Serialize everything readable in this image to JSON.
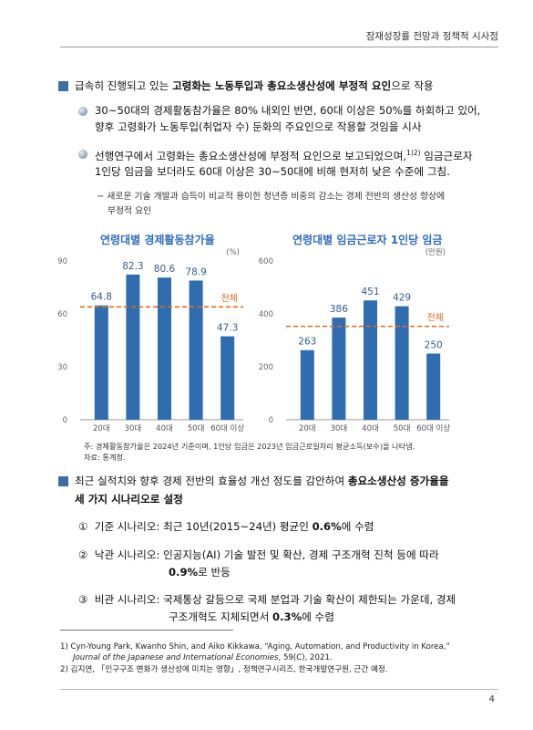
{
  "header": {
    "title": "잠재성장률 전망과 정책적 시사점"
  },
  "section1": {
    "pre": "급속히 진행되고 있는 ",
    "bold": "고령화는 노동투입과 총요소생산성에 부정적 요인",
    "post": "으로 작용"
  },
  "bullet1": {
    "line1": "30~50대의 경제활동참가율은 80% 내외인 반면, 60대 이상은 50%를 하회하고 있어,",
    "line2": "향후 고령화가 노동투입(취업자 수) 둔화의 주요인으로 작용할 것임을 시사"
  },
  "bullet2": {
    "line1": "선행연구에서 고령화는 총요소생산성에 부정적 요인으로 보고되었으며,",
    "sup": "1)2)",
    "line1b": " 임금근로자",
    "line2": "1인당 임금을 보더라도 60대 이상은 30~50대에 비해 현저히 낮은 수준에 그침."
  },
  "dash1": {
    "line1": "− 새로운 기술 개발과 습득이 비교적 용이한 청년층 비중의 감소는 경제 전반의 생산성 향상에",
    "line2": "부정적 요인"
  },
  "charts": {
    "overall_label": "전체",
    "c1_title": "연령대별 경제활동참가율",
    "c1_unit": "(%)",
    "c2_title": "연령대별 임금근로자 1인당 임금",
    "c2_unit": "(만원)"
  },
  "chart_data": [
    {
      "type": "bar",
      "title": "연령대별 경제활동참가율",
      "unit": "(%)",
      "categories": [
        "20대",
        "30대",
        "40대",
        "50대",
        "60대 이상"
      ],
      "values": [
        64.8,
        82.3,
        80.6,
        78.9,
        47.3
      ],
      "ylim": [
        0,
        90
      ],
      "yticks": [
        0,
        30,
        60,
        90
      ],
      "reference_line": {
        "label": "전체",
        "value": 64.0
      },
      "bar_color": "#2f6cb0",
      "ref_color": "#e06b1d"
    },
    {
      "type": "bar",
      "title": "연령대별 임금근로자 1인당 임금",
      "unit": "(만원)",
      "categories": [
        "20대",
        "30대",
        "40대",
        "50대",
        "60대 이상"
      ],
      "values": [
        263,
        386,
        451,
        429,
        250
      ],
      "ylim": [
        0,
        600
      ],
      "yticks": [
        0,
        200,
        400,
        600
      ],
      "reference_line": {
        "label": "전체",
        "value": 353
      },
      "bar_color": "#2f6cb0",
      "ref_color": "#e06b1d"
    }
  ],
  "notes": {
    "note": "주: 경제활동참가율은 2024년 기준이며, 1인당 임금은 2023년 임금근로일자리 평균소득(보수)을 나타냄.",
    "source": "자료: 통계청."
  },
  "section2": {
    "pre": "최근 실적치와 향후 경제 전반의 효율성 개선 정도를 감안하여 ",
    "bold1": "총요소생산성 증가율을",
    "bold2": "세 가지 시나리오로 설정"
  },
  "scenarios": {
    "s1_num": "①",
    "s1_label": "기준 시나리오:",
    "s1_text": "최근 10년(2015~24년) 평균인 ",
    "s1_bold": "0.6%",
    "s1_post": "에 수렴",
    "s2_num": "②",
    "s2_label": "낙관 시나리오:",
    "s2_text": "인공지능(AI) 기술 발전 및 확산, 경제 구조개혁 진척 등에 따라",
    "s2_bold": "0.9%",
    "s2_post": "로 반등",
    "s3_num": "③",
    "s3_label": "비관 시나리오:",
    "s3_text": "국제통상 갈등으로 국제 분업과 기술 확산이 제한되는 가운데, 경제",
    "s3_text2": "구조개혁도 지체되면서 ",
    "s3_bold": "0.3%",
    "s3_post": "에 수렴"
  },
  "footnotes": {
    "fn1a": "1) Cyn-Young Park, Kwanho Shin, and Aiko Kikkawa, “Aging, Automation, and Productivity in Korea,”",
    "fn1b": "Journal of the Japanese and International Economies",
    "fn1c": ", 59(C), 2021.",
    "fn2": "2) 김지연, 「인구구조 변화가 생산성에 미치는 영향」, 정책연구시리즈, 한국개발연구원, 근간 예정."
  },
  "page_number": "4"
}
